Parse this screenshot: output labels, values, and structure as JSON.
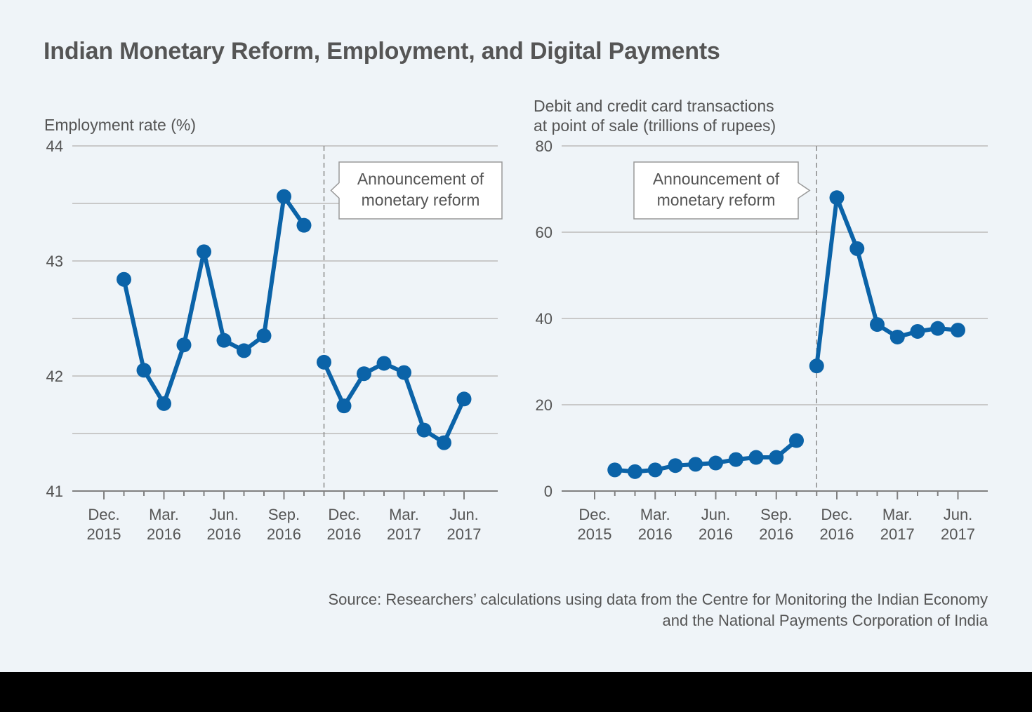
{
  "title": "Indian Monetary Reform, Employment, and Digital Payments",
  "source_line1": "Source: Researchers’ calculations using data from the Centre for Monitoring the Indian Economy",
  "source_line2": "and the National Payments Corporation of India",
  "colors": {
    "series": "#0b63a8",
    "background": "#eff4f8",
    "text": "#555555"
  },
  "chart_data": [
    {
      "type": "line",
      "ylabel": "Employment rate (%)",
      "ylim": [
        41,
        44
      ],
      "yticks": [
        41,
        42,
        43,
        44
      ],
      "minor_gridlines": [
        41.5,
        42.5,
        43.5
      ],
      "x_tick_labels": [
        {
          "month": "Dec.",
          "year": "2015"
        },
        {
          "month": "Mar.",
          "year": "2016"
        },
        {
          "month": "Jun.",
          "year": "2016"
        },
        {
          "month": "Sep.",
          "year": "2016"
        },
        {
          "month": "Dec.",
          "year": "2016"
        },
        {
          "month": "Mar.",
          "year": "2017"
        },
        {
          "month": "Jun.",
          "year": "2017"
        }
      ],
      "months": [
        "Jan 2016",
        "Feb 2016",
        "Mar 2016",
        "Apr 2016",
        "May 2016",
        "Jun 2016",
        "Jul 2016",
        "Aug 2016",
        "Sep 2016",
        "Oct 2016",
        "Nov 2016",
        "Dec 2016",
        "Jan 2017",
        "Feb 2017",
        "Mar 2017",
        "Apr 2017",
        "May 2017",
        "Jun 2017"
      ],
      "segments": [
        {
          "start_month": "Jan 2016",
          "values": [
            42.84,
            42.05,
            41.76,
            42.27,
            43.08,
            42.31,
            42.22,
            42.35,
            43.56,
            43.31
          ]
        },
        {
          "start_month": "Nov 2016",
          "values": [
            42.12,
            41.74,
            42.02,
            42.11,
            42.03,
            41.53,
            41.42,
            41.8
          ]
        }
      ],
      "event": {
        "month": "Nov 2016",
        "label_line1": "Announcement of",
        "label_line2": "monetary reform",
        "label_side": "right"
      }
    },
    {
      "type": "line",
      "ylabel_line1": "Debit and credit card transactions",
      "ylabel_line2": "at point of sale (trillions of rupees)",
      "ylim": [
        0,
        80
      ],
      "yticks": [
        0,
        20,
        40,
        60,
        80
      ],
      "x_tick_labels": [
        {
          "month": "Dec.",
          "year": "2015"
        },
        {
          "month": "Mar.",
          "year": "2016"
        },
        {
          "month": "Jun.",
          "year": "2016"
        },
        {
          "month": "Sep.",
          "year": "2016"
        },
        {
          "month": "Dec.",
          "year": "2016"
        },
        {
          "month": "Mar.",
          "year": "2017"
        },
        {
          "month": "Jun.",
          "year": "2017"
        }
      ],
      "segments": [
        {
          "start_month": "Jan 2016",
          "values": [
            4.9,
            4.5,
            4.9,
            5.9,
            6.2,
            6.5,
            7.3,
            7.8,
            7.8,
            11.7
          ]
        },
        {
          "start_month": "Nov 2016",
          "values": [
            29.0,
            68.0,
            56.2,
            38.6,
            35.7,
            37.0,
            37.7,
            37.3
          ]
        }
      ],
      "event": {
        "month": "Nov 2016",
        "label_line1": "Announcement of",
        "label_line2": "monetary reform",
        "label_side": "left"
      }
    }
  ]
}
